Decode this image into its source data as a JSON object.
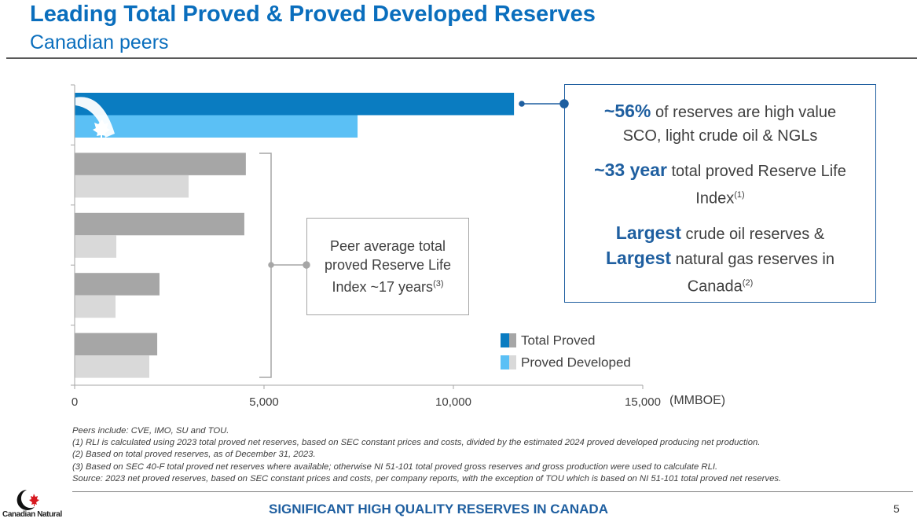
{
  "header": {
    "title": "Leading Total Proved & Proved Developed Reserves",
    "subtitle": "Canadian peers"
  },
  "chart_data": {
    "type": "bar",
    "orientation": "horizontal",
    "categories": [
      null,
      null,
      null,
      null,
      null
    ],
    "series": [
      {
        "name": "Total Proved",
        "colors": [
          "#0a7cc1",
          "#a6a6a6",
          "#a6a6a6",
          "#a6a6a6",
          "#a6a6a6"
        ],
        "values": [
          11600,
          4520,
          4480,
          2240,
          2180
        ]
      },
      {
        "name": "Proved Developed",
        "colors": [
          "#5bc0f5",
          "#d9d9d9",
          "#d9d9d9",
          "#d9d9d9",
          "#d9d9d9"
        ],
        "values": [
          7470,
          3010,
          1100,
          1080,
          1970
        ]
      }
    ],
    "xlim": [
      0,
      15000
    ],
    "xticks": [
      0,
      {
        "value": 5000,
        "label": "5,000"
      },
      {
        "value": 10000,
        "label": "10,000"
      },
      {
        "value": 15000,
        "label": "15,000"
      }
    ],
    "x_label": "(MMBOE)",
    "legend": "bottom-right",
    "grid": false
  },
  "peer_box": {
    "text": "Peer average total proved Reserve Life Index ~17 years",
    "note": "(3)"
  },
  "key_box": {
    "items": [
      [
        {
          "text": "~56%",
          "strong": true
        },
        {
          "text": "of reserves are high value SCO, light crude oil & NGLs",
          "strong": false
        }
      ],
      [
        {
          "text": "~33 year",
          "strong": true
        },
        {
          "text": "total proved Reserve Life Index",
          "strong": false
        },
        {
          "text": "(1)",
          "note": true
        }
      ],
      [
        {
          "text": "Largest",
          "strong": true
        },
        {
          "text": "crude oil reserves &",
          "strong": false
        },
        {
          "text": "Largest",
          "strong": true
        },
        {
          "text": "natural gas reserves in Canada",
          "strong": false
        },
        {
          "text": "(2)",
          "note": true
        }
      ]
    ]
  },
  "footnotes": [
    "Peers include: CVE, IMO, SU and TOU.",
    "(1) RLI is calculated using 2023 total proved net reserves, based on SEC constant prices and costs, divided by the estimated 2024 proved developed producing net production.",
    "(2) Based on total proved reserves, as of December 31, 2023.",
    "(3) Based on SEC 40-F total proved net reserves where available; otherwise NI 51-101 total proved gross reserves and gross production were used to calculate RLI.",
    "Source: 2023 net proved reserves, based on SEC constant prices and costs, per company reports, with the exception of TOU which is based on NI 51-101 total proved net reserves."
  ],
  "footer": {
    "logo": "Canadian Natural",
    "tagline": "SIGNIFICANT HIGH QUALITY RESERVES IN CANADA",
    "page": "5"
  }
}
